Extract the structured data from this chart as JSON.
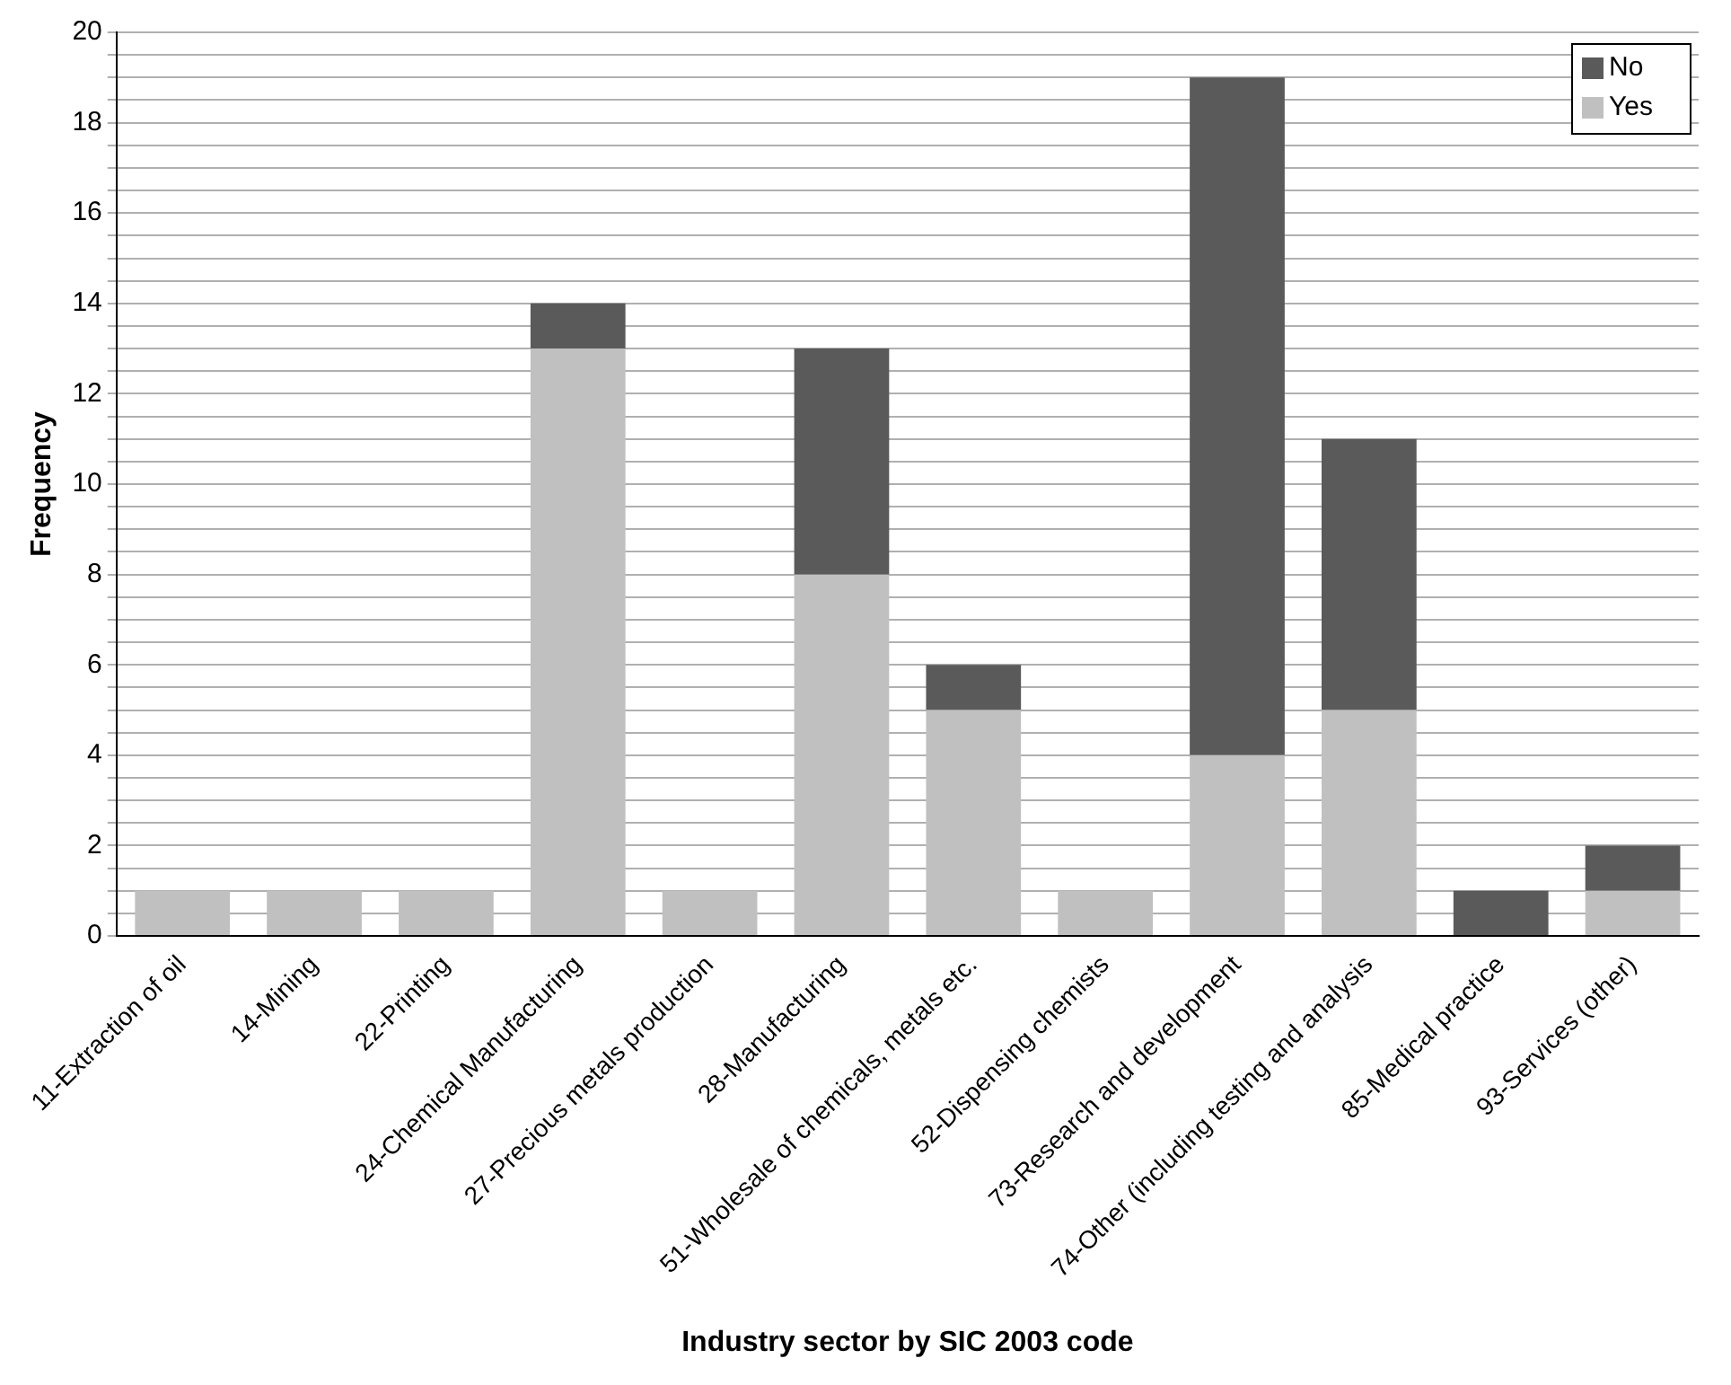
{
  "chart_data": {
    "type": "bar",
    "stacked": true,
    "xlabel": "Industry sector by SIC 2003 code",
    "ylabel": "Frequency",
    "categories": [
      "11-Extraction of oil",
      "14-Mining",
      "22-Printing",
      "24-Chemical Manufacturing",
      "27-Precious metals production",
      "28-Manufacturing",
      "51-Wholesale of chemicals, metals etc.",
      "52-Dispensing chemists",
      "73-Research and development",
      "74-Other (including testing and analysis",
      "85-Medical practice",
      "93-Services (other)"
    ],
    "series": [
      {
        "name": "Yes",
        "color": "#c0c0c0",
        "values": [
          1,
          1,
          1,
          13,
          1,
          8,
          5,
          1,
          4,
          5,
          0,
          1
        ]
      },
      {
        "name": "No",
        "color": "#5a5a5a",
        "values": [
          0,
          0,
          0,
          1,
          0,
          5,
          1,
          0,
          15,
          6,
          1,
          1
        ]
      }
    ],
    "ylim": [
      0,
      20
    ],
    "yticks": [
      0,
      {
        "value": 0.5,
        "label": null
      },
      {
        "value": 1,
        "label": null
      },
      {
        "value": 1.5,
        "label": null
      },
      2,
      {
        "value": 2.5,
        "label": null
      },
      {
        "value": 3,
        "label": null
      },
      {
        "value": 3.5,
        "label": null
      },
      4,
      {
        "value": 4.5,
        "label": null
      },
      {
        "value": 5,
        "label": null
      },
      {
        "value": 5.5,
        "label": null
      },
      6,
      {
        "value": 6.5,
        "label": null
      },
      {
        "value": 7,
        "label": null
      },
      {
        "value": 7.5,
        "label": null
      },
      8,
      {
        "value": 8.5,
        "label": null
      },
      {
        "value": 9,
        "label": null
      },
      {
        "value": 9.5,
        "label": null
      },
      10,
      {
        "value": 10.5,
        "label": null
      },
      {
        "value": 11,
        "label": null
      },
      {
        "value": 11.5,
        "label": null
      },
      12,
      {
        "value": 12.5,
        "label": null
      },
      {
        "value": 13,
        "label": null
      },
      {
        "value": 13.5,
        "label": null
      },
      14,
      {
        "value": 14.5,
        "label": null
      },
      {
        "value": 15,
        "label": null
      },
      {
        "value": 15.5,
        "label": null
      },
      16,
      {
        "value": 16.5,
        "label": null
      },
      {
        "value": 17,
        "label": null
      },
      {
        "value": 17.5,
        "label": null
      },
      18,
      {
        "value": 18.5,
        "label": null
      },
      {
        "value": 19,
        "label": null
      },
      {
        "value": 19.5,
        "label": null
      },
      20
    ],
    "grid": "y",
    "legend": "top right"
  }
}
